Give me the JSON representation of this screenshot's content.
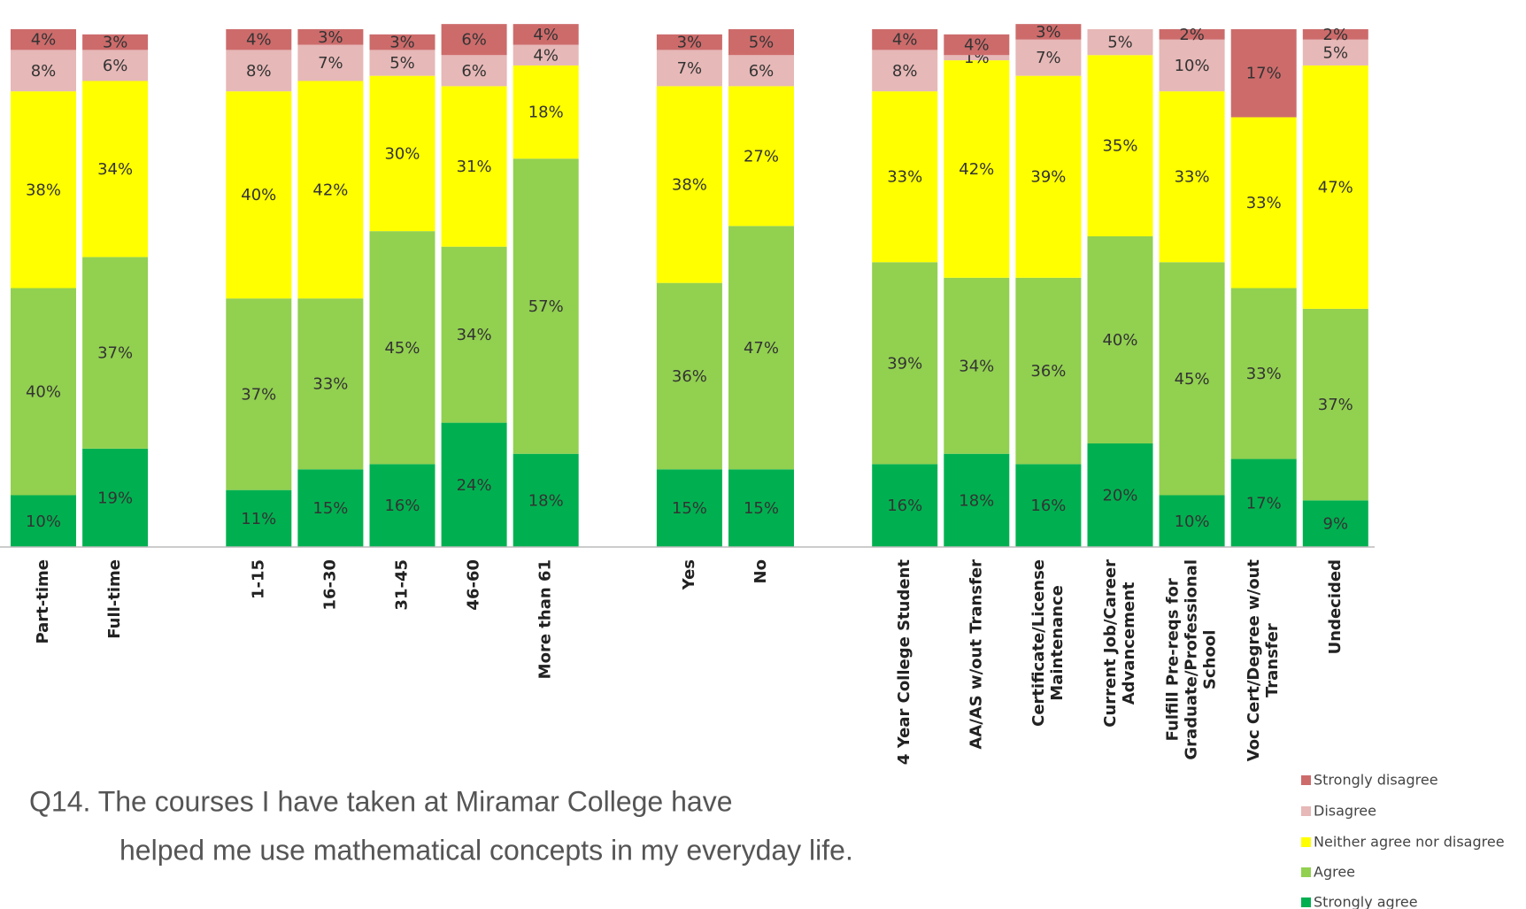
{
  "chart_data": {
    "type": "stacked_bar",
    "title": [
      "Q14. The courses I have taken at Miramar College have",
      "helped me use mathematical concepts in my everyday life."
    ],
    "categories": [
      "Part-time",
      "Full-time",
      null,
      "1-15",
      "16-30",
      "31-45",
      "46-60",
      "More than 61",
      null,
      "Yes",
      "No",
      null,
      "4 Year College Student",
      "AA/AS w/out Transfer",
      "Certificate/License\nMaintenance",
      "Current Job/Career\nAdvancement",
      "Fulfill Pre-reqs for\nGraduate/Professional\nSchool",
      "Voc Cert/Degree w/out\nTransfer",
      "Undecided"
    ],
    "ylim": [
      0,
      100
    ],
    "series": [
      {
        "name": "Strongly agree",
        "color": "#00b050",
        "values": [
          10,
          19,
          null,
          11,
          15,
          16,
          24,
          18,
          null,
          15,
          15,
          null,
          16,
          18,
          16,
          20,
          10,
          17,
          9
        ],
        "value_labels": [
          "10%",
          "19%",
          null,
          "11%",
          "15%",
          "16%",
          "24%",
          "18%",
          null,
          "15%",
          "15%",
          null,
          "16%",
          "18%",
          "16%",
          "20%",
          "10%",
          "17%",
          "9%"
        ]
      },
      {
        "name": "Agree",
        "color": "#92d050",
        "values": [
          40,
          37,
          null,
          37,
          33,
          45,
          34,
          57,
          null,
          36,
          47,
          null,
          39,
          34,
          36,
          40,
          45,
          33,
          37
        ],
        "value_labels": [
          "40%",
          "37%",
          null,
          "37%",
          "33%",
          "45%",
          "34%",
          "57%",
          null,
          "36%",
          "47%",
          null,
          "39%",
          "34%",
          "36%",
          "40%",
          "45%",
          "33%",
          "37%"
        ]
      },
      {
        "name": "Neither agree nor disagree",
        "color": "#ffff00",
        "values": [
          38,
          34,
          null,
          40,
          42,
          30,
          31,
          18,
          null,
          38,
          27,
          null,
          33,
          42,
          39,
          35,
          33,
          33,
          47
        ],
        "value_labels": [
          "38%",
          "34%",
          null,
          "40%",
          "42%",
          "30%",
          "31%",
          "18%",
          null,
          "38%",
          "27%",
          null,
          "33%",
          "42%",
          "39%",
          "35%",
          "33%",
          "33%",
          "47%"
        ]
      },
      {
        "name": "Disagree",
        "color": "#e6b8b7",
        "values": [
          8,
          6,
          null,
          8,
          7,
          5,
          6,
          4,
          null,
          7,
          6,
          null,
          8,
          1,
          7,
          5,
          10,
          null,
          5
        ],
        "value_labels": [
          "8%",
          "6%",
          null,
          "8%",
          "7%",
          "5%",
          "6%",
          "4%",
          null,
          "7%",
          "6%",
          null,
          "8%",
          "1%",
          "7%",
          "5%",
          "10%",
          null,
          "5%"
        ]
      },
      {
        "name": "Strongly disagree",
        "color": "#cd6b6b",
        "values": [
          4,
          3,
          null,
          4,
          3,
          3,
          6,
          4,
          null,
          3,
          5,
          null,
          4,
          4,
          3,
          null,
          2,
          17,
          2
        ],
        "value_labels": [
          "4%",
          "3%",
          null,
          "4%",
          "3%",
          "3%",
          "6%",
          "4%",
          null,
          "3%",
          "5%",
          null,
          "4%",
          "4%",
          "3%",
          null,
          "2%",
          "17%",
          "2%"
        ]
      }
    ]
  }
}
